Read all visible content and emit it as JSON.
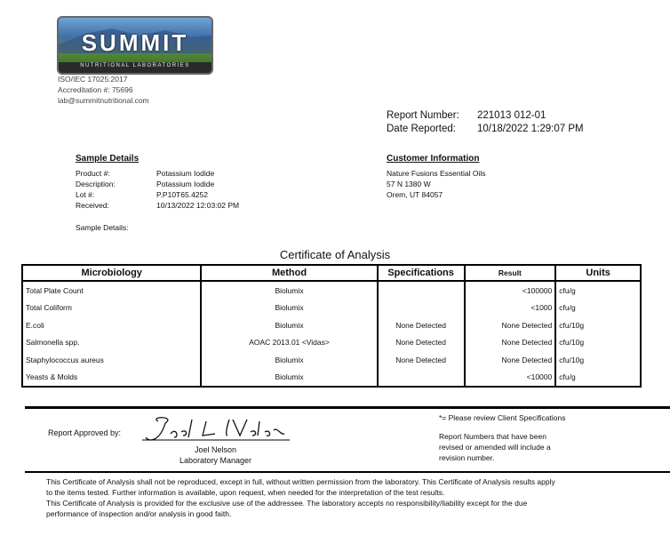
{
  "lab": {
    "logo_text": "SUMMIT",
    "logo_subtext": "NUTRITIONAL LABORATORIES",
    "iso": "ISO/IEC 17025:2017",
    "accreditation": "Accreditation #: 75696",
    "email": "lab@summitnutritional.com"
  },
  "report": {
    "number_label": "Report Number:",
    "number": "221013 012-01",
    "date_label": "Date Reported:",
    "date": "10/18/2022 1:29:07 PM"
  },
  "sample": {
    "heading": "Sample Details",
    "fields": [
      {
        "label": "Product #:",
        "value": "Potassium Iodide"
      },
      {
        "label": "Description:",
        "value": "Potassium Iodide"
      },
      {
        "label": "Lot #:",
        "value": "P.P10T65.4252"
      },
      {
        "label": "Received:",
        "value": "10/13/2022 12:03:02 PM"
      }
    ],
    "details_label": "Sample Details:"
  },
  "customer": {
    "heading": "Customer Information",
    "lines": [
      "Nature Fusions Essential Oils",
      "57 N 1380 W",
      "Orem, UT 84057"
    ]
  },
  "title": "Certificate of Analysis",
  "table": {
    "headers": [
      "Microbiology",
      "Method",
      "Specifications",
      "Result",
      "Units"
    ],
    "rows": [
      [
        "Total Plate Count",
        "Biolumix",
        "",
        "<100000",
        "cfu/g"
      ],
      [
        "Total Coliform",
        "Biolumix",
        "",
        "<1000",
        "cfu/g"
      ],
      [
        "E.coli",
        "Biolumix",
        "None Detected",
        "None Detected",
        "cfu/10g"
      ],
      [
        "Salmonella spp.",
        "AOAC 2013.01 <Vidas>",
        "None Detected",
        "None Detected",
        "cfu/10g"
      ],
      [
        "Staphylococcus aureus",
        "Biolumix",
        "None Detected",
        "None Detected",
        "cfu/10g"
      ],
      [
        "Yeasts & Molds",
        "Biolumix",
        "",
        "<10000",
        "cfu/g"
      ]
    ]
  },
  "approval": {
    "label": "Report Approved by:",
    "signature": "Joel L Nelson",
    "name": "Joel Nelson",
    "title": "Laboratory Manager"
  },
  "notes": {
    "spec_note": "*= Please review Client Specifications",
    "revision_note": [
      "Report Numbers that have been",
      "revised or amended will include a",
      "revision number."
    ]
  },
  "disclaimer": [
    "This Certificate of Analysis shall not be reproduced, except in full, without written permission from the laboratory. This Certificate of Analysis results apply",
    "to the items tested. Further information is available, upon request, when needed for the interpretation of the test results.",
    "This Certificate of Analysis is provided for the exclusive use of the addressee. The laboratory accepts no responsibility/liability except for the due",
    "performance of inspection and/or analysis in good faith."
  ]
}
